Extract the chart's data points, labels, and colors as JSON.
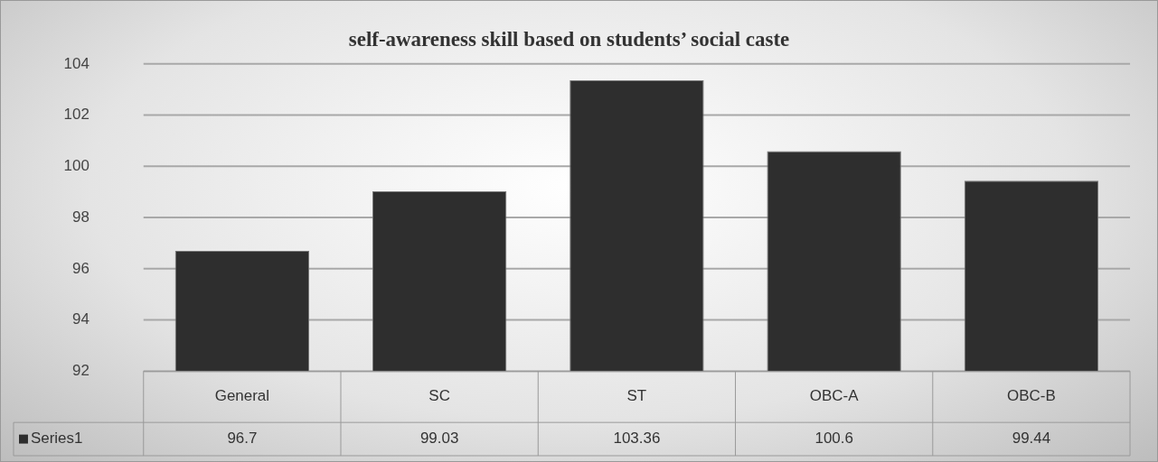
{
  "chart_data": {
    "type": "bar",
    "title": "self-awareness skill based on students’ social caste",
    "categories": [
      "General",
      "SC",
      "ST",
      "OBC-A",
      "OBC-B"
    ],
    "series": [
      {
        "name": "Series1",
        "color": "#2e2e2e",
        "values": [
          96.7,
          99.03,
          103.36,
          100.6,
          99.44
        ]
      }
    ],
    "ylim": [
      92,
      104
    ],
    "yticks": [
      92,
      94,
      96,
      98,
      100,
      102,
      104
    ],
    "grid": "y",
    "legend": "bottom left",
    "data_labels": true
  }
}
